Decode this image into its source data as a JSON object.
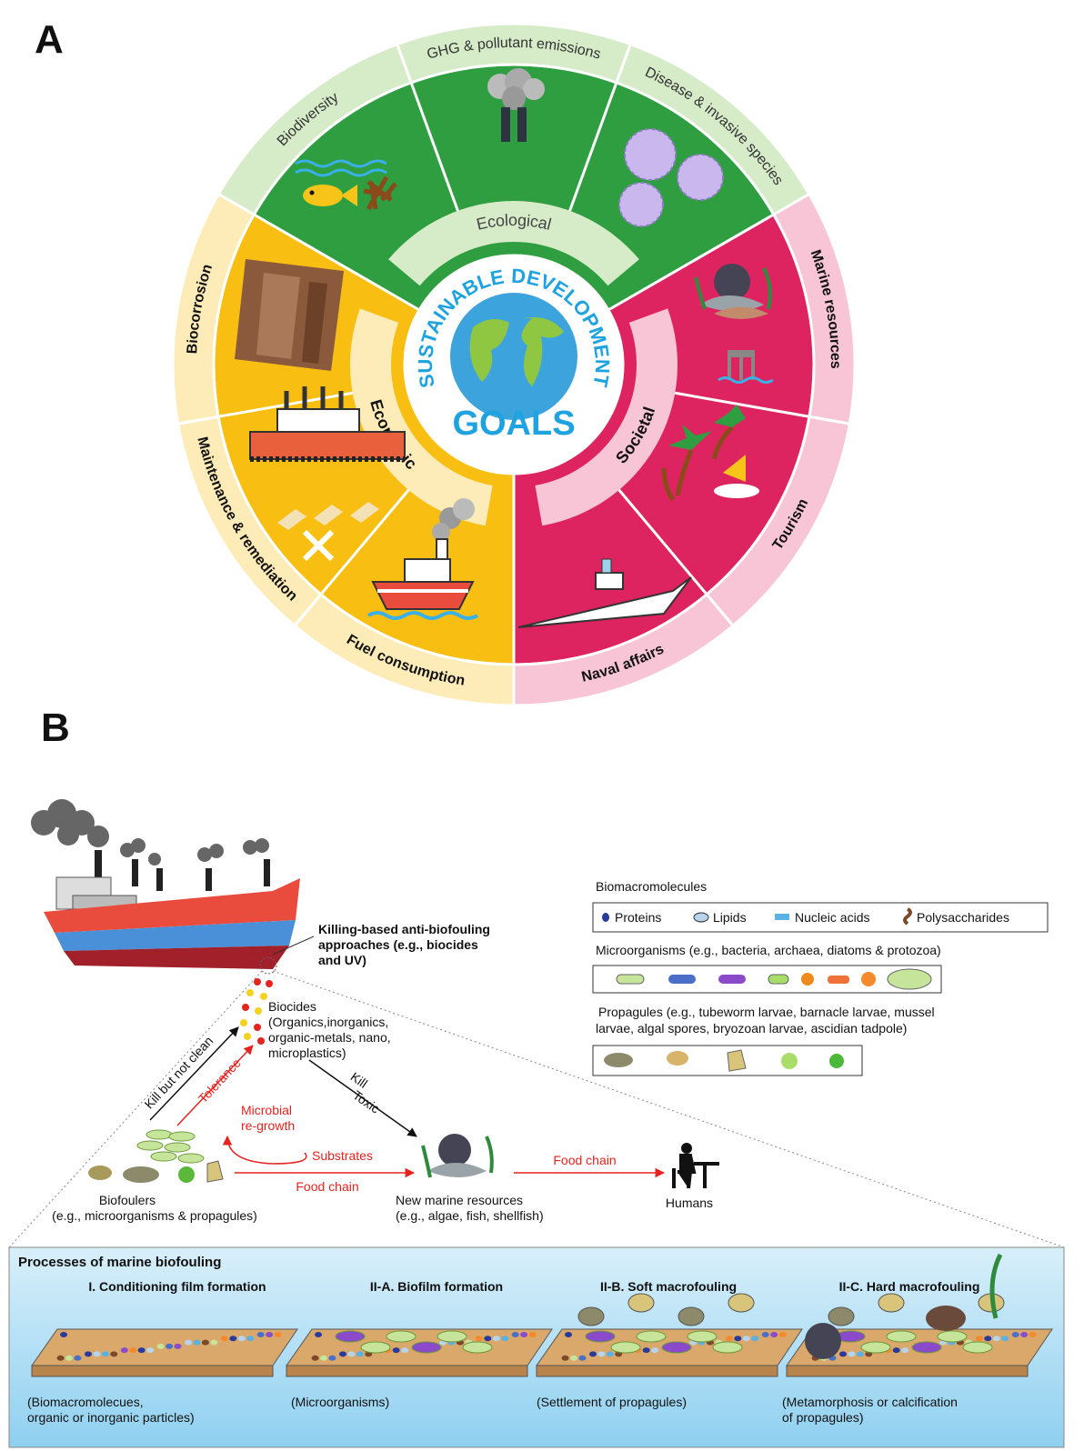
{
  "panel_a": {
    "label": "A",
    "center": {
      "arc_text": "SUSTAINABLE DEVELOPMENT",
      "goals": "GOALS"
    },
    "dimensions": [
      {
        "name": "Ecological",
        "color": "#2f9e41",
        "light": "#d6ecc9",
        "aspects": [
          "Biodiversity",
          "GHG & pollutant emissions",
          "Disease & invasive species"
        ]
      },
      {
        "name": "Societal",
        "color": "#de2460",
        "light": "#f7c5d5",
        "aspects": [
          "Marine resources",
          "Tourism",
          "Naval affairs"
        ]
      },
      {
        "name": "Economic",
        "color": "#f8bf12",
        "light": "#fdebb8",
        "aspects": [
          "Fuel consumption",
          "Maintenance & remediation",
          "Biocorrosion"
        ]
      }
    ]
  },
  "panel_b": {
    "label": "B",
    "ship_note": [
      "Killing-based anti-biofouling",
      "approaches (e.g., biocides",
      "and UV)"
    ],
    "biocides": [
      "Biocides",
      "(Organics,inorganics,",
      "organic-metals, nano,",
      "microplastics)"
    ],
    "arrows": {
      "kill_not_clean": "Kill but not clean",
      "tolerance": "Tolerance",
      "kill": "Kill",
      "toxic": "Toxic",
      "microbial_regrowth": [
        "Microbial",
        "re-growth"
      ],
      "substrates": "Substrates",
      "food_chain_1": "Food chain",
      "food_chain_2": "Food chain"
    },
    "biofoulers": [
      "Biofoulers",
      "(e.g., microorganisms & propagules)"
    ],
    "marine_resources": [
      "New marine resources",
      "(e.g., algae, fish, shellfish)"
    ],
    "humans": "Humans",
    "legend": {
      "biomacromolecules": {
        "title": "Biomacromolecules",
        "items": [
          "Proteins",
          "Lipids",
          "Nucleic acids",
          "Polysaccharides"
        ]
      },
      "microorganisms": {
        "title": "Microorganisms (e.g., bacteria, archaea, diatoms & protozoa)"
      },
      "propagules": {
        "title": [
          "Propagules (e.g., tubeworm larvae, barnacle larvae, mussel",
          "larvae, algal spores, bryozoan larvae, ascidian tadpole)"
        ]
      }
    },
    "processes": {
      "title": "Processes of marine biofouling",
      "stages": [
        {
          "name": "I. Conditioning film formation",
          "caption": [
            "(Biomacromolecues,",
            "organic or inorganic particles)"
          ]
        },
        {
          "name": "II-A. Biofilm formation",
          "caption": [
            "(Microorganisms)"
          ]
        },
        {
          "name": "II-B. Soft macrofouling",
          "caption": [
            "(Settlement of propagules)"
          ]
        },
        {
          "name": "II-C. Hard macrofouling",
          "caption": [
            "(Metamorphosis or calcification",
            "of propagules)"
          ]
        }
      ]
    }
  }
}
